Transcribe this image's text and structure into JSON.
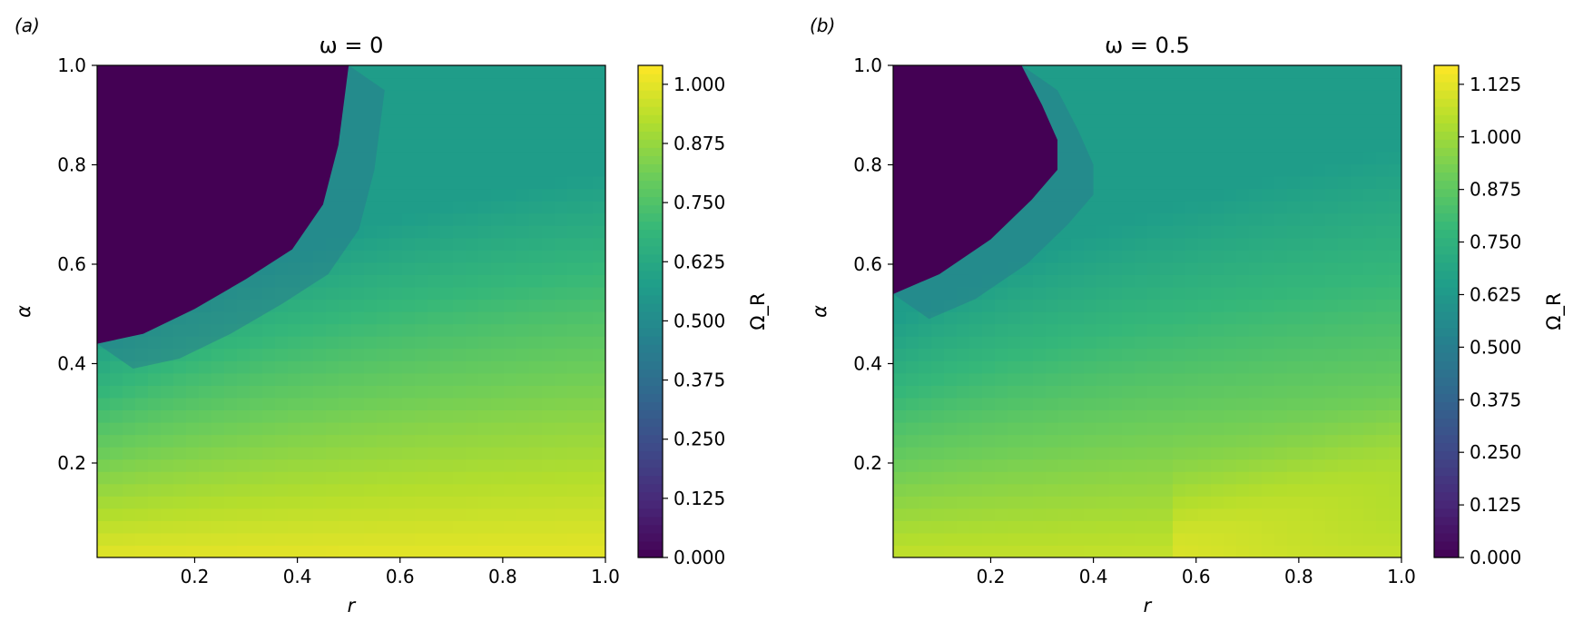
{
  "chart_data": [
    {
      "type": "heatmap",
      "panel_label": "(a)",
      "title": "ω = 0",
      "omega": 0,
      "xlabel": "r",
      "ylabel": "α",
      "colorbar_label": "Ω_R",
      "xlim": [
        0.01,
        1.0
      ],
      "ylim": [
        0.01,
        1.0
      ],
      "xticks": [
        "0.2",
        "0.4",
        "0.6",
        "0.8",
        "1.0"
      ],
      "yticks": [
        "0.2",
        "0.4",
        "0.6",
        "0.8",
        "1.0"
      ],
      "colorbar_range": [
        0.0,
        1.04
      ],
      "colorbar_ticks": [
        "0.000",
        "0.125",
        "0.250",
        "0.375",
        "0.500",
        "0.625",
        "0.750",
        "0.875",
        "1.000"
      ],
      "colormap": "viridis",
      "zero_region_boundary": [
        [
          0.01,
          0.44
        ],
        [
          0.1,
          0.46
        ],
        [
          0.2,
          0.51
        ],
        [
          0.3,
          0.57
        ],
        [
          0.39,
          0.63
        ],
        [
          0.45,
          0.72
        ],
        [
          0.48,
          0.84
        ],
        [
          0.5,
          1.0
        ]
      ]
    },
    {
      "type": "heatmap",
      "panel_label": "(b)",
      "title": "ω = 0.5",
      "omega": 0.5,
      "xlabel": "r",
      "ylabel": "α",
      "colorbar_label": "Ω_R",
      "xlim": [
        0.01,
        1.0
      ],
      "ylim": [
        0.01,
        1.0
      ],
      "xticks": [
        "0.2",
        "0.4",
        "0.6",
        "0.8",
        "1.0"
      ],
      "yticks": [
        "0.2",
        "0.4",
        "0.6",
        "0.8",
        "1.0"
      ],
      "colorbar_range": [
        0.0,
        1.17
      ],
      "colorbar_ticks": [
        "0.000",
        "0.125",
        "0.250",
        "0.375",
        "0.500",
        "0.625",
        "0.750",
        "0.875",
        "1.000",
        "1.125"
      ],
      "colormap": "viridis",
      "zero_region_boundary": [
        [
          0.01,
          0.54
        ],
        [
          0.1,
          0.58
        ],
        [
          0.2,
          0.65
        ],
        [
          0.28,
          0.73
        ],
        [
          0.33,
          0.79
        ],
        [
          0.33,
          0.85
        ],
        [
          0.3,
          0.92
        ],
        [
          0.26,
          1.0
        ]
      ]
    }
  ]
}
